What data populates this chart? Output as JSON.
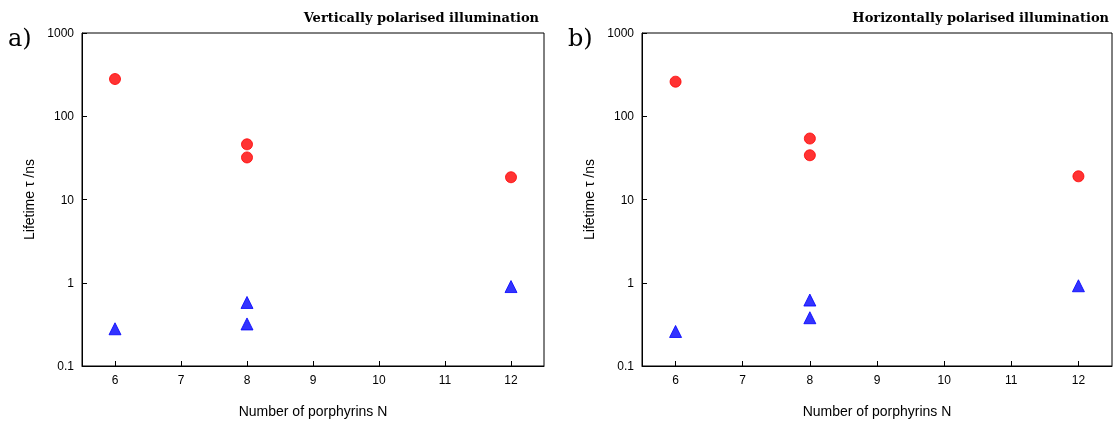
{
  "chart_data": [
    {
      "type": "scatter",
      "title": "Vertically polarised illumination",
      "xlabel": "Number of porphyrins N",
      "ylabel": "Lifetime τ /ns",
      "annotations": [
        "a)"
      ],
      "log": "y",
      "grid": false,
      "xlim": [
        5.5,
        12.5
      ],
      "xticks": [
        6,
        7,
        8,
        9,
        10,
        11,
        12
      ],
      "ylim": [
        0.1,
        1000
      ],
      "yticks": [
        0.1,
        1,
        10,
        100,
        1000
      ],
      "series": [
        {
          "color": "#ff0000",
          "marker": "circle",
          "x": [
            6,
            8
          ],
          "values": [
            280,
            46
          ]
        },
        {
          "color": "#ff0000",
          "marker": "circle",
          "x": [
            8,
            12
          ],
          "values": [
            32,
            18.5
          ]
        },
        {
          "color": "#0000ff",
          "marker": "triangle",
          "x": [
            6,
            8
          ],
          "values": [
            0.28,
            0.32
          ]
        },
        {
          "color": "#0000ff",
          "marker": "triangle",
          "x": [
            8,
            12
          ],
          "values": [
            0.58,
            0.9
          ]
        }
      ]
    },
    {
      "type": "scatter",
      "title": "Horizontally polarised illumination",
      "xlabel": "Number of porphyrins N",
      "ylabel": "Lifetime τ /ns",
      "annotations": [
        "b)"
      ],
      "log": "y",
      "grid": false,
      "xlim": [
        5.5,
        12.5
      ],
      "xticks": [
        6,
        7,
        8,
        9,
        10,
        11,
        12
      ],
      "ylim": [
        0.1,
        1000
      ],
      "yticks": [
        0.1,
        1,
        10,
        100,
        1000
      ],
      "series": [
        {
          "color": "#ff0000",
          "marker": "circle",
          "x": [
            6,
            8
          ],
          "values": [
            260,
            54
          ]
        },
        {
          "color": "#ff0000",
          "marker": "circle",
          "x": [
            8,
            12
          ],
          "values": [
            34,
            19
          ]
        },
        {
          "color": "#0000ff",
          "marker": "triangle",
          "x": [
            6,
            8
          ],
          "values": [
            0.26,
            0.38
          ]
        },
        {
          "color": "#0000ff",
          "marker": "triangle",
          "x": [
            8,
            12
          ],
          "values": [
            0.62,
            0.92
          ]
        }
      ]
    }
  ]
}
